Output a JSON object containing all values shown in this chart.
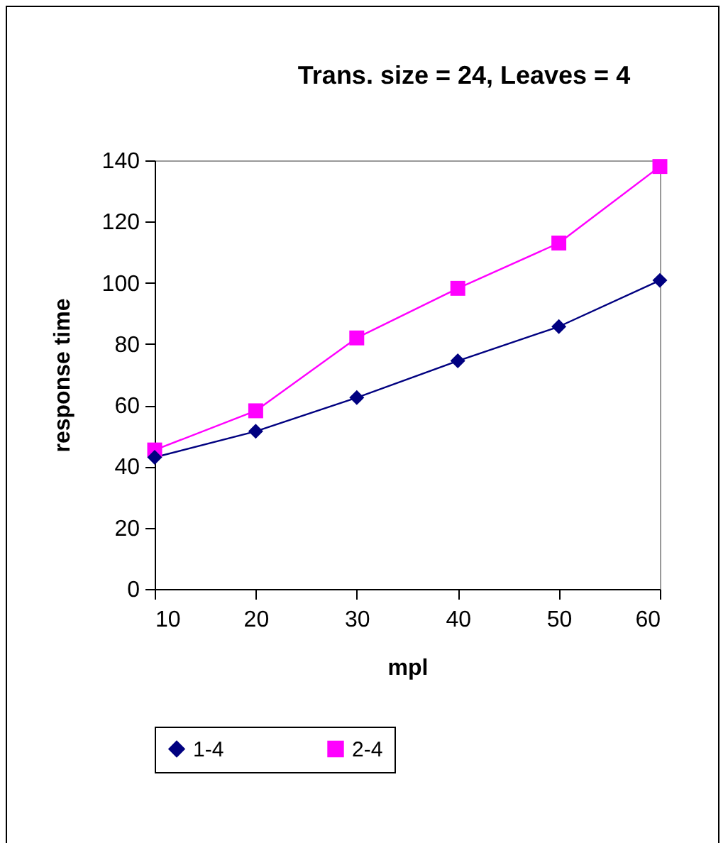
{
  "chart_data": {
    "type": "line",
    "title": "Trans. size = 24, Leaves = 4",
    "xlabel": "mpl",
    "ylabel": "response  time",
    "x": [
      10,
      20,
      30,
      40,
      50,
      60
    ],
    "series": [
      {
        "name": "1-4",
        "color": "#000080",
        "marker": "diamond",
        "values": [
          43,
          51.5,
          62.5,
          74.5,
          85.7,
          100.8
        ]
      },
      {
        "name": "2-4",
        "color": "#ff00ff",
        "marker": "square",
        "values": [
          45.4,
          58.2,
          82,
          98.2,
          113,
          138
        ]
      }
    ],
    "xlim": [
      10,
      60
    ],
    "xticks": [
      10,
      20,
      30,
      40,
      50,
      60
    ],
    "ylim": [
      0,
      140
    ],
    "yticks": [
      0,
      20,
      40,
      60,
      80,
      100,
      120,
      140
    ],
    "grid": false,
    "legend": "bottom",
    "line_style": "solid"
  }
}
